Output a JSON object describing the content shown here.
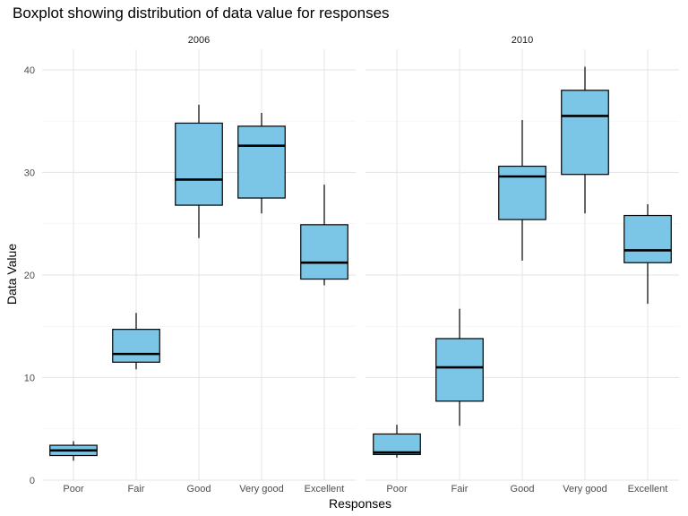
{
  "chart_data": {
    "type": "boxplot",
    "title": "Boxplot showing distribution of data value for responses",
    "xlabel": "Responses",
    "ylabel": "Data Value",
    "ylim": [
      0,
      42
    ],
    "yticks": [
      0,
      10,
      20,
      30,
      40
    ],
    "categories": [
      "Poor",
      "Fair",
      "Good",
      "Very good",
      "Excellent"
    ],
    "box_fill": "#7BC5E7",
    "box_stroke": "#000000",
    "grid": true,
    "facets": [
      {
        "label": "2006",
        "boxes": [
          {
            "category": "Poor",
            "min": 1.9,
            "q1": 2.4,
            "median": 2.9,
            "q3": 3.4,
            "max": 3.8
          },
          {
            "category": "Fair",
            "min": 10.8,
            "q1": 11.5,
            "median": 12.3,
            "q3": 14.7,
            "max": 16.3
          },
          {
            "category": "Good",
            "min": 23.6,
            "q1": 26.8,
            "median": 29.3,
            "q3": 34.8,
            "max": 36.6
          },
          {
            "category": "Very good",
            "min": 26.0,
            "q1": 27.5,
            "median": 32.6,
            "q3": 34.5,
            "max": 35.8
          },
          {
            "category": "Excellent",
            "min": 19.0,
            "q1": 19.6,
            "median": 21.2,
            "q3": 24.9,
            "max": 28.8
          }
        ]
      },
      {
        "label": "2010",
        "boxes": [
          {
            "category": "Poor",
            "min": 2.2,
            "q1": 2.5,
            "median": 2.7,
            "q3": 4.5,
            "max": 5.4
          },
          {
            "category": "Fair",
            "min": 5.3,
            "q1": 7.7,
            "median": 11.0,
            "q3": 13.8,
            "max": 16.7
          },
          {
            "category": "Good",
            "min": 21.4,
            "q1": 25.4,
            "median": 29.6,
            "q3": 30.6,
            "max": 35.1
          },
          {
            "category": "Very good",
            "min": 26.0,
            "q1": 29.8,
            "median": 35.5,
            "q3": 38.0,
            "max": 40.3
          },
          {
            "category": "Excellent",
            "min": 17.2,
            "q1": 21.2,
            "median": 22.4,
            "q3": 25.8,
            "max": 26.9
          }
        ]
      }
    ]
  }
}
